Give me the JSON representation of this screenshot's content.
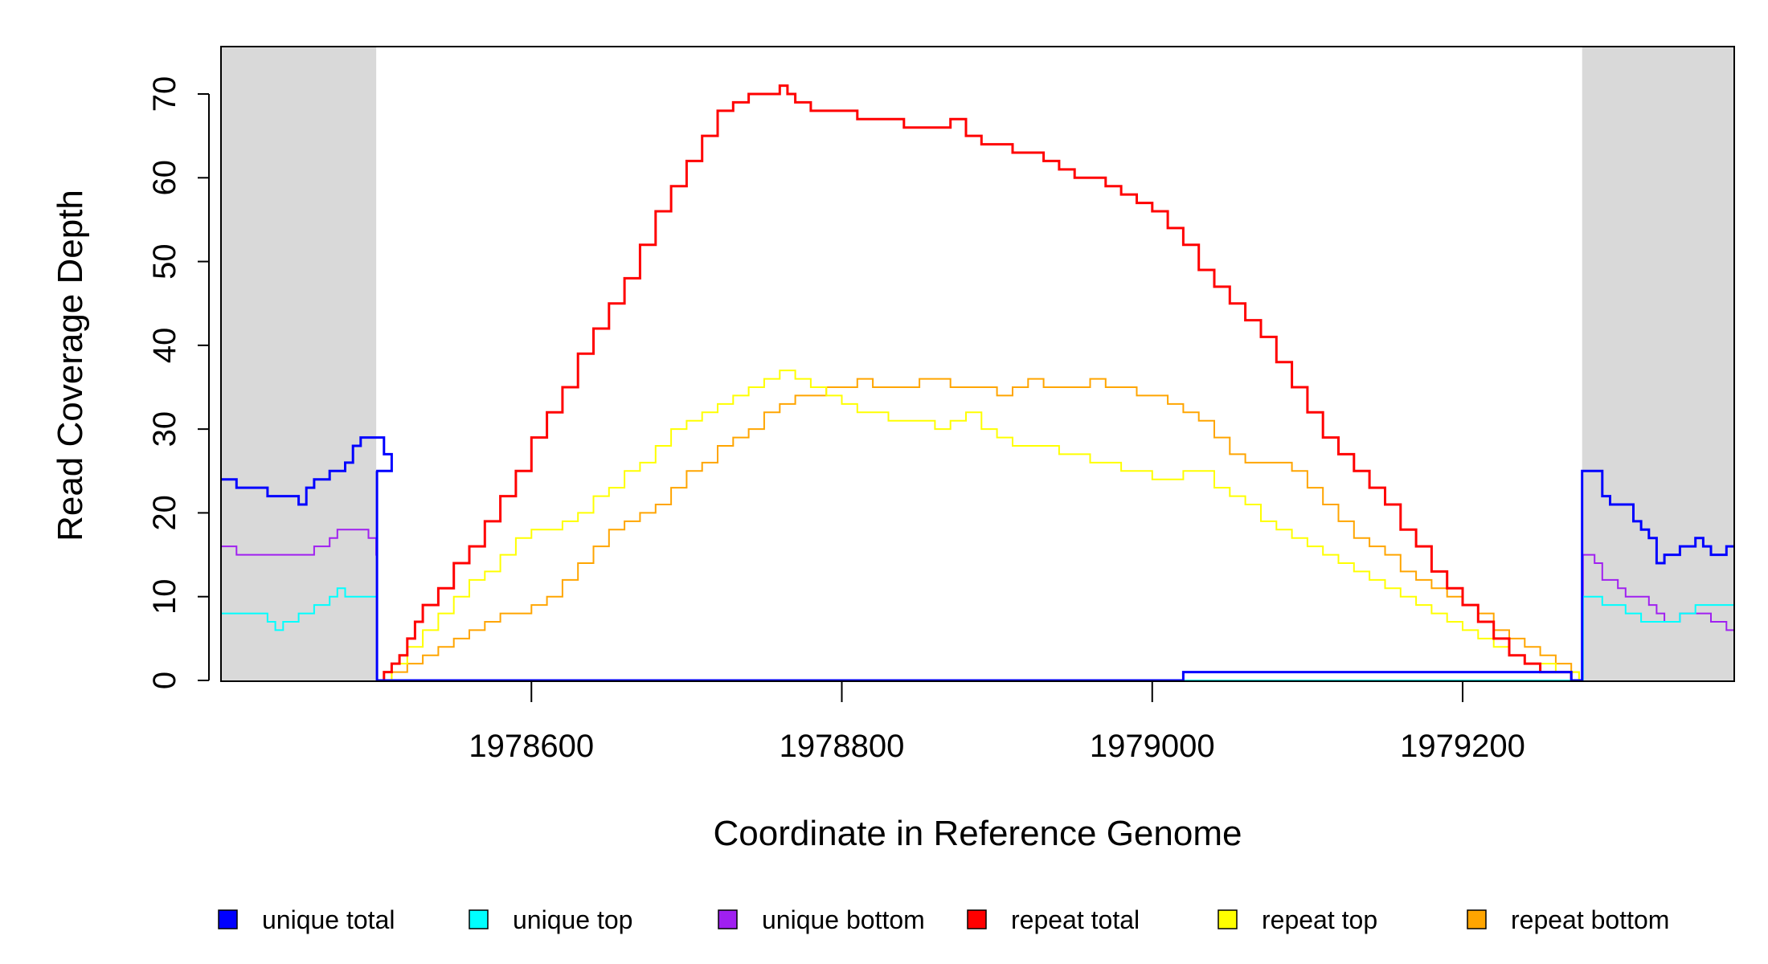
{
  "chart_data": {
    "type": "line",
    "title": "",
    "xlabel": "Coordinate in Reference Genome",
    "ylabel": "Read Coverage Depth",
    "xlim": [
      1978400,
      1979375
    ],
    "ylim": [
      0,
      75
    ],
    "xticks": [
      1978600,
      1978800,
      1979000,
      1979200
    ],
    "yticks": [
      0,
      10,
      20,
      30,
      40,
      50,
      60,
      70
    ],
    "xtick_labels": [
      "1978600",
      "1978800",
      "1979000",
      "1979200"
    ],
    "ytick_labels": [
      "0",
      "10",
      "20",
      "30",
      "40",
      "50",
      "60",
      "70"
    ],
    "grid": false,
    "legend_position": "bottom",
    "shaded_regions": [
      {
        "x0": 1978400,
        "x1": 1978500,
        "color": "#d9d9d9"
      },
      {
        "x0": 1979277,
        "x1": 1979375,
        "color": "#d9d9d9"
      }
    ],
    "series": [
      {
        "name": "unique total",
        "color": "#0000ff",
        "width": 3,
        "style": "step",
        "x": [
          1978400,
          1978410,
          1978430,
          1978450,
          1978455,
          1978460,
          1978470,
          1978480,
          1978485,
          1978490,
          1978495,
          1978505,
          1978510,
          1978500,
          1978500.5,
          1979020,
          1979270,
          1979277,
          1979277.5,
          1979290,
          1979295,
          1979310,
          1979315,
          1979320,
          1979325,
          1979330,
          1979340,
          1979350,
          1979355,
          1979360,
          1979365,
          1979370,
          1979375
        ],
        "y": [
          24,
          23,
          22,
          21,
          23,
          24,
          25,
          26,
          28,
          29,
          29,
          27,
          25,
          25,
          0,
          1,
          0,
          25,
          25,
          22,
          21,
          19,
          18,
          17,
          14,
          15,
          16,
          17,
          16,
          15,
          15,
          16,
          16
        ]
      },
      {
        "name": "unique top",
        "color": "#00ffff",
        "width": 2,
        "style": "step",
        "x": [
          1978400,
          1978430,
          1978435,
          1978440,
          1978450,
          1978460,
          1978470,
          1978475,
          1978480,
          1978485,
          1978490,
          1978500,
          1978500.5,
          1979277,
          1979277.5,
          1979290,
          1979300,
          1979305,
          1979315,
          1979325,
          1979340,
          1979350,
          1979360,
          1979375
        ],
        "y": [
          8,
          7,
          6,
          7,
          8,
          9,
          10,
          11,
          10,
          10,
          10,
          10,
          0,
          0,
          10,
          9,
          9,
          8,
          7,
          7,
          8,
          9,
          9,
          9
        ]
      },
      {
        "name": "unique bottom",
        "color": "#a020f0",
        "width": 2,
        "style": "step",
        "x": [
          1978400,
          1978410,
          1978440,
          1978460,
          1978470,
          1978475,
          1978490,
          1978495,
          1978500,
          1978500.5,
          1979277,
          1979277.5,
          1979285,
          1979290,
          1979300,
          1979305,
          1979315,
          1979320,
          1979325,
          1979330,
          1979340,
          1979350,
          1979360,
          1979370,
          1979375
        ],
        "y": [
          16,
          15,
          15,
          16,
          17,
          18,
          18,
          17,
          15,
          0,
          0,
          15,
          14,
          12,
          11,
          10,
          10,
          9,
          8,
          7,
          8,
          8,
          7,
          6,
          7
        ]
      },
      {
        "name": "repeat total",
        "color": "#ff0000",
        "width": 3,
        "style": "step",
        "x": [
          1978500,
          1978505,
          1978510,
          1978515,
          1978520,
          1978525,
          1978530,
          1978540,
          1978550,
          1978560,
          1978570,
          1978580,
          1978590,
          1978600,
          1978610,
          1978620,
          1978630,
          1978640,
          1978650,
          1978660,
          1978670,
          1978680,
          1978690,
          1978700,
          1978710,
          1978720,
          1978730,
          1978740,
          1978750,
          1978760,
          1978765,
          1978770,
          1978780,
          1978790,
          1978800,
          1978810,
          1978820,
          1978830,
          1978840,
          1978850,
          1978860,
          1978870,
          1978880,
          1978890,
          1978900,
          1978910,
          1978920,
          1978930,
          1978940,
          1978950,
          1978960,
          1978970,
          1978980,
          1978990,
          1979000,
          1979010,
          1979020,
          1979030,
          1979040,
          1979050,
          1979060,
          1979070,
          1979080,
          1979090,
          1979100,
          1979110,
          1979120,
          1979130,
          1979140,
          1979150,
          1979160,
          1979170,
          1979180,
          1979190,
          1979200,
          1979210,
          1979220,
          1979230,
          1979240,
          1979250,
          1979260,
          1979270,
          1979275
        ],
        "y": [
          0,
          1,
          2,
          3,
          5,
          7,
          9,
          11,
          14,
          16,
          19,
          22,
          25,
          29,
          32,
          35,
          39,
          42,
          45,
          48,
          52,
          56,
          59,
          62,
          65,
          68,
          69,
          70,
          70,
          71,
          70,
          69,
          68,
          68,
          68,
          67,
          67,
          67,
          66,
          66,
          66,
          67,
          65,
          64,
          64,
          63,
          63,
          62,
          61,
          60,
          60,
          59,
          58,
          57,
          56,
          54,
          52,
          49,
          47,
          45,
          43,
          41,
          38,
          35,
          32,
          29,
          27,
          25,
          23,
          21,
          18,
          16,
          13,
          11,
          9,
          7,
          5,
          3,
          2,
          1,
          1,
          0,
          0
        ]
      },
      {
        "name": "repeat top",
        "color": "#ffff00",
        "width": 2,
        "style": "step",
        "x": [
          1978500,
          1978510,
          1978520,
          1978530,
          1978540,
          1978550,
          1978560,
          1978570,
          1978580,
          1978590,
          1978600,
          1978610,
          1978620,
          1978630,
          1978640,
          1978650,
          1978660,
          1978670,
          1978680,
          1978690,
          1978700,
          1978710,
          1978720,
          1978730,
          1978740,
          1978750,
          1978760,
          1978770,
          1978780,
          1978790,
          1978800,
          1978810,
          1978820,
          1978830,
          1978840,
          1978850,
          1978860,
          1978870,
          1978880,
          1978890,
          1978900,
          1978910,
          1978920,
          1978930,
          1978940,
          1978950,
          1978960,
          1978970,
          1978980,
          1978990,
          1979000,
          1979010,
          1979020,
          1979030,
          1979040,
          1979050,
          1979060,
          1979070,
          1979080,
          1979090,
          1979100,
          1979110,
          1979120,
          1979130,
          1979140,
          1979150,
          1979160,
          1979170,
          1979180,
          1979190,
          1979200,
          1979210,
          1979220,
          1979230,
          1979240,
          1979250,
          1979260,
          1979270,
          1979275
        ],
        "y": [
          0,
          2,
          4,
          6,
          8,
          10,
          12,
          13,
          15,
          17,
          18,
          18,
          19,
          20,
          22,
          23,
          25,
          26,
          28,
          30,
          31,
          32,
          33,
          34,
          35,
          36,
          37,
          36,
          35,
          34,
          33,
          32,
          32,
          31,
          31,
          31,
          30,
          31,
          32,
          30,
          29,
          28,
          28,
          28,
          27,
          27,
          26,
          26,
          25,
          25,
          24,
          24,
          25,
          25,
          23,
          22,
          21,
          19,
          18,
          17,
          16,
          15,
          14,
          13,
          12,
          11,
          10,
          9,
          8,
          7,
          6,
          5,
          4,
          3,
          2,
          2,
          1,
          1,
          0
        ]
      },
      {
        "name": "repeat bottom",
        "color": "#ffa500",
        "width": 2,
        "style": "step",
        "x": [
          1978500,
          1978510,
          1978520,
          1978530,
          1978540,
          1978550,
          1978560,
          1978570,
          1978580,
          1978590,
          1978600,
          1978610,
          1978620,
          1978630,
          1978640,
          1978650,
          1978660,
          1978670,
          1978680,
          1978690,
          1978700,
          1978710,
          1978720,
          1978730,
          1978740,
          1978750,
          1978760,
          1978770,
          1978780,
          1978790,
          1978800,
          1978810,
          1978820,
          1978830,
          1978840,
          1978850,
          1978860,
          1978870,
          1978880,
          1978890,
          1978900,
          1978910,
          1978920,
          1978930,
          1978940,
          1978950,
          1978960,
          1978970,
          1978980,
          1978990,
          1979000,
          1979010,
          1979020,
          1979030,
          1979040,
          1979050,
          1979060,
          1979070,
          1979080,
          1979090,
          1979100,
          1979110,
          1979120,
          1979130,
          1979140,
          1979150,
          1979160,
          1979170,
          1979180,
          1979190,
          1979200,
          1979210,
          1979220,
          1979230,
          1979240,
          1979250,
          1979260,
          1979270,
          1979275
        ],
        "y": [
          0,
          1,
          2,
          3,
          4,
          5,
          6,
          7,
          8,
          8,
          9,
          10,
          12,
          14,
          16,
          18,
          19,
          20,
          21,
          23,
          25,
          26,
          28,
          29,
          30,
          32,
          33,
          34,
          34,
          35,
          35,
          36,
          35,
          35,
          35,
          36,
          36,
          35,
          35,
          35,
          34,
          35,
          36,
          35,
          35,
          35,
          36,
          35,
          35,
          34,
          34,
          33,
          32,
          31,
          29,
          27,
          26,
          26,
          26,
          25,
          23,
          21,
          19,
          17,
          16,
          15,
          13,
          12,
          11,
          10,
          9,
          8,
          6,
          5,
          4,
          3,
          2,
          1,
          0
        ]
      }
    ],
    "legend": [
      {
        "label": "unique total",
        "color": "#0000ff"
      },
      {
        "label": "unique top",
        "color": "#00ffff"
      },
      {
        "label": "unique bottom",
        "color": "#a020f0"
      },
      {
        "label": "repeat total",
        "color": "#ff0000"
      },
      {
        "label": "repeat top",
        "color": "#ffff00"
      },
      {
        "label": "repeat bottom",
        "color": "#ffa500"
      }
    ]
  }
}
